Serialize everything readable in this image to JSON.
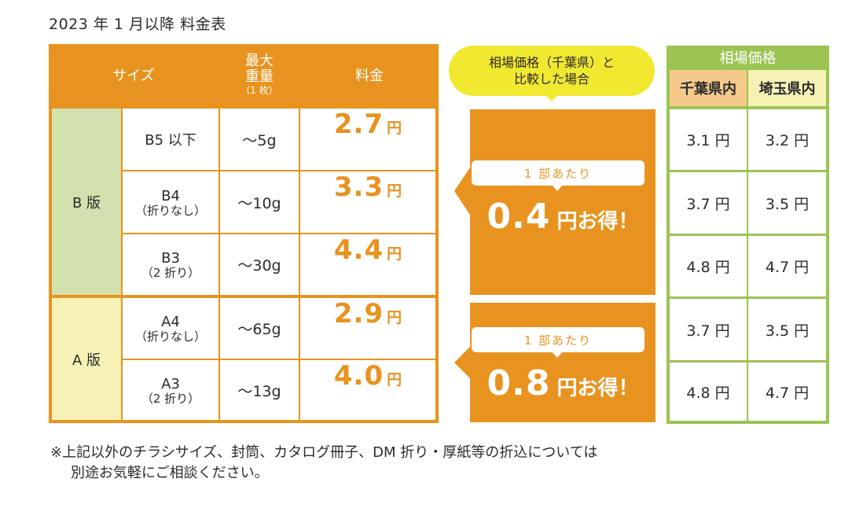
{
  "title": "2023 年 1 月以降 料金表",
  "table": {
    "headers": {
      "size": "サイズ",
      "max_weight": "最大\n重量",
      "max_weight_note": "（1 枚）",
      "price": "料金"
    },
    "groups": [
      {
        "label": "B 版",
        "color": "#d3e1ae"
      },
      {
        "label": "A 版",
        "color": "#f6f2b6"
      }
    ],
    "rows": [
      {
        "size": "B5 以下",
        "size_note": "",
        "weight": "～5g",
        "price": "2.7",
        "unit": "円"
      },
      {
        "size": "B4",
        "size_note": "（折りなし）",
        "weight": "～10g",
        "price": "3.3",
        "unit": "円"
      },
      {
        "size": "B3",
        "size_note": "（2 折り）",
        "weight": "～30g",
        "price": "4.4",
        "unit": "円"
      },
      {
        "size": "A4",
        "size_note": "（折りなし）",
        "weight": "～65g",
        "price": "2.9",
        "unit": "円"
      },
      {
        "size": "A3",
        "size_note": "（2 折り）",
        "weight": "～13g",
        "price": "4.0",
        "unit": "円"
      }
    ]
  },
  "comparison": {
    "bubble_line1": "相場価格（千葉県）と",
    "bubble_line2": "比較した場合",
    "savings": [
      {
        "per_label": "1 部あたり",
        "amount": "0.4",
        "suffix": "円お得！"
      },
      {
        "per_label": "1 部あたり",
        "amount": "0.8",
        "suffix": "円お得！"
      }
    ]
  },
  "market": {
    "title": "相場価格",
    "col_headers": [
      "千葉県内",
      "埼玉県内"
    ],
    "rows": [
      [
        "3.1 円",
        "3.2 円"
      ],
      [
        "3.7 円",
        "3.5 円"
      ],
      [
        "4.8 円",
        "4.7 円"
      ],
      [
        "3.7 円",
        "3.5 円"
      ],
      [
        "4.8 円",
        "4.7 円"
      ]
    ]
  },
  "footnote": [
    "※上記以外のチラシサイズ、封筒、カタログ冊子、DM 折り・厚紙等の折込については",
    "別途お気軽にご相談ください。"
  ],
  "colors": {
    "orange": "#e8931f",
    "green": "#9cc453",
    "light_green": "#d3e1ae",
    "light_yellow": "#f6f2b6",
    "bubble_yellow": "#f1e830",
    "chiba_header": "#f4c98a"
  }
}
